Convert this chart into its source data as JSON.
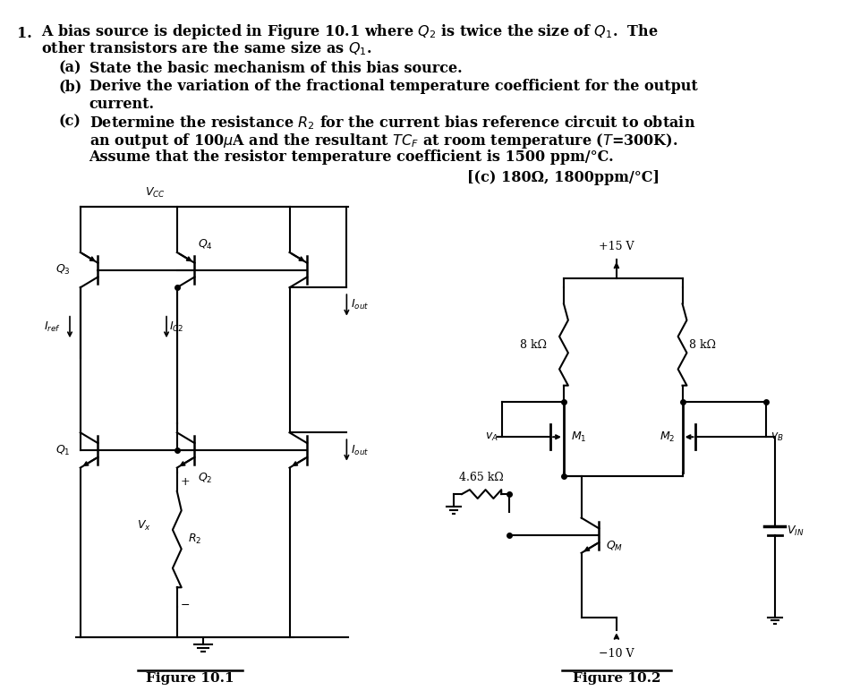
{
  "bg_color": "#ffffff",
  "text_color": "#000000",
  "fig1_caption": "Figure 10.1",
  "fig2_caption": "Figure 10.2",
  "vcc_label": "$V_{CC}$",
  "q1_label": "$Q_1$",
  "q2_label": "$Q_2$",
  "q3_label": "$Q_3$",
  "q4_label": "$Q_4$",
  "iref_label": "$I_{ref}$",
  "ic2_label": "$I_{C2}$",
  "iout_label": "$I_{out}$",
  "vx_label": "$V_x$",
  "r2_label": "$R_2$",
  "plus_label": "+",
  "minus_label": "−",
  "vpos_label": "+15 V",
  "vneg_label": "−10 V",
  "r8k_left": "8 kΩ",
  "r8k_right": "8 kΩ",
  "r465_label": "4.65 kΩ",
  "m1_label": "$M_1$",
  "m2_label": "$M_2$",
  "qm_label": "$Q_M$",
  "va_label": "$v_A$",
  "vb_label": "$v_B$",
  "vin_label": "$V_{IN}$",
  "fs_main": 11.5,
  "fs_circuit": 9,
  "lw": 1.5
}
